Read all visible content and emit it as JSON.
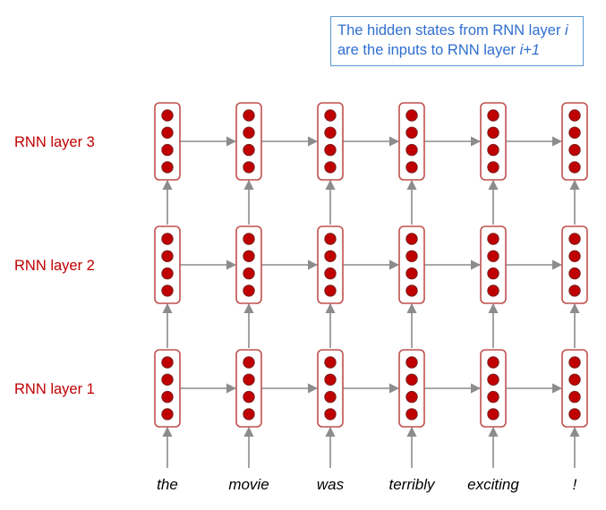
{
  "callout": {
    "line1_text": "The hidden states from RNN layer ",
    "line1_var": "i",
    "line2_text": "are the inputs to RNN layer ",
    "line2_var": "i+1"
  },
  "layers": [
    "RNN layer 3",
    "RNN layer 2",
    "RNN layer 1"
  ],
  "words": [
    "the",
    "movie",
    "was",
    "terribly",
    "exciting",
    "!"
  ],
  "colors": {
    "cell_border": "#c0504d",
    "dot_fill": "#c00000",
    "arrow": "#8c8c8c",
    "label": "#c00000",
    "callout_border": "#5b9bd5",
    "callout_text": "#2f6fd0"
  }
}
